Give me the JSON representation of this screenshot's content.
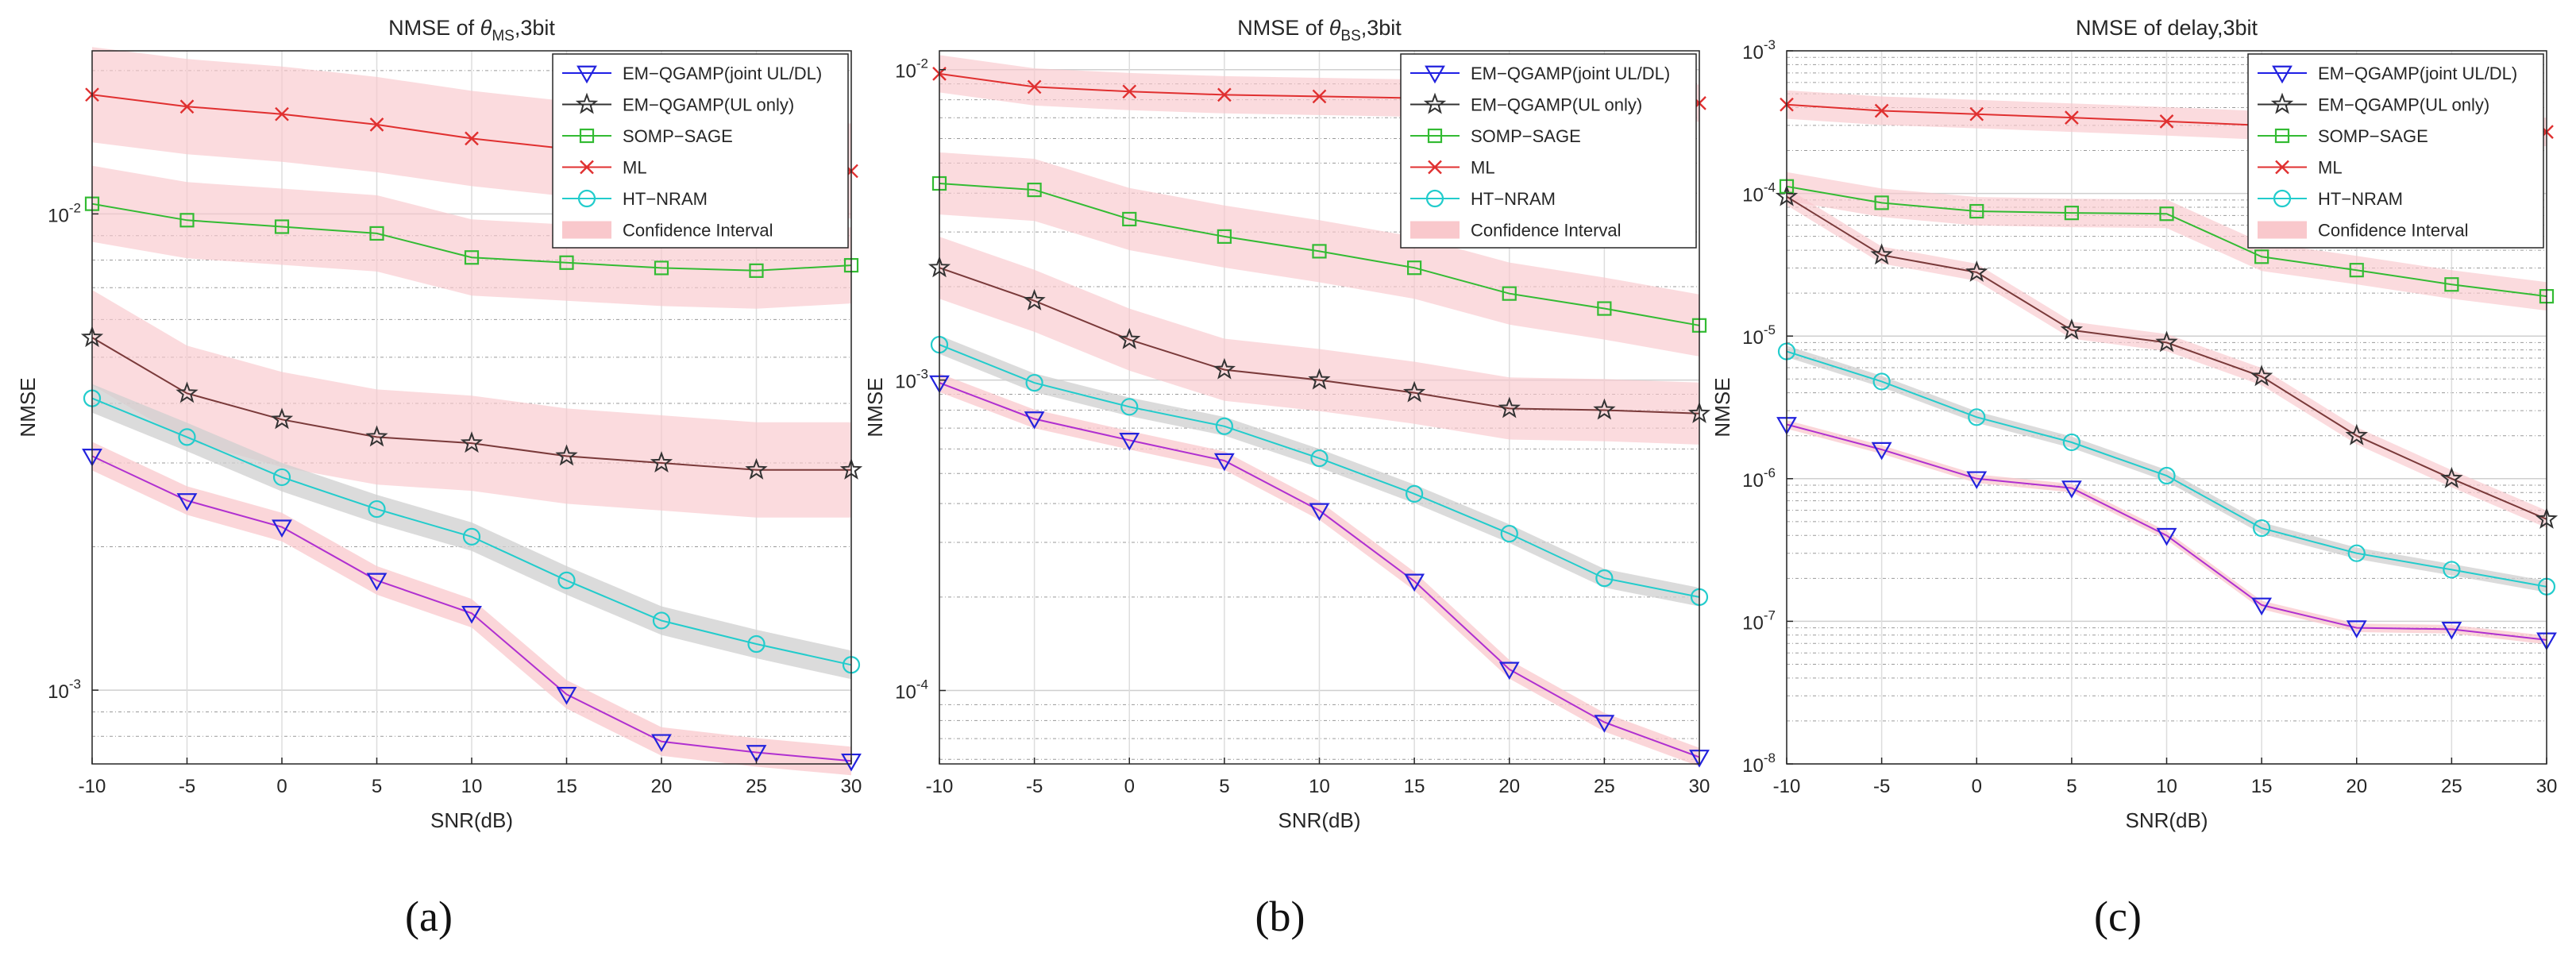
{
  "figure": {
    "panels": [
      "(a)",
      "(b)",
      "(c)"
    ]
  },
  "colors": {
    "em_joint": "#1f1fe6",
    "em_ul": "#333333",
    "somp": "#33bb33",
    "ml": "#e03030",
    "ht": "#22cccc",
    "ci": "#f9c8cc",
    "marker_joint": "#2222dd",
    "marker_ul": "#333333"
  },
  "chart_data": [
    {
      "type": "line",
      "scale": "log",
      "panel_label": "(a)",
      "title": "NMSE of θMS,3bit",
      "title_parts": {
        "pre": "NMSE of ",
        "theta": "θ",
        "sub": "MS",
        "post": ",3bit"
      },
      "xlabel": "SNR(dB)",
      "ylabel": "NMSE",
      "x": [
        -10,
        -5,
        0,
        5,
        10,
        15,
        20,
        25,
        30
      ],
      "xticks": [
        "-10",
        "-5",
        "0",
        "5",
        "10",
        "15",
        "20",
        "25",
        "30"
      ],
      "xlim": [
        -10,
        30
      ],
      "ylim": [
        0.0007,
        0.022
      ],
      "yticks": [
        {
          "value": 0.001,
          "base": "10",
          "exp": "-3"
        },
        {
          "value": 0.01,
          "base": "10",
          "exp": "-2"
        }
      ],
      "legend": [
        "EM−QGAMP(joint UL/DL)",
        "EM−QGAMP(UL only)",
        "SOMP−SAGE",
        "ML",
        "HT−NRAM",
        "Confidence Interval"
      ],
      "series": [
        {
          "name": "EM−QGAMP(joint UL/DL)",
          "key": "em_joint",
          "marker": "triangle-down",
          "values": [
            0.0031,
            0.0025,
            0.0022,
            0.0017,
            0.00145,
            0.00098,
            0.00078,
            0.00074,
            0.00071
          ],
          "ci": 0.03
        },
        {
          "name": "EM−QGAMP(UL only)",
          "key": "em_ul",
          "marker": "star",
          "values": [
            0.0055,
            0.0042,
            0.0037,
            0.0034,
            0.0033,
            0.0031,
            0.003,
            0.0029,
            0.0029
          ],
          "ci": 0.1
        },
        {
          "name": "SOMP−SAGE",
          "key": "somp",
          "marker": "square",
          "values": [
            0.0105,
            0.0097,
            0.0094,
            0.0091,
            0.0081,
            0.0079,
            0.0077,
            0.0076,
            0.0078
          ],
          "ci": 0.08
        },
        {
          "name": "ML",
          "key": "ml",
          "marker": "x",
          "values": [
            0.0178,
            0.0168,
            0.0162,
            0.0154,
            0.0144,
            0.0137,
            0.0132,
            0.0127,
            0.0123
          ],
          "ci": 0.1
        },
        {
          "name": "HT−NRAM",
          "key": "ht",
          "marker": "circle",
          "values": [
            0.0041,
            0.0034,
            0.0028,
            0.0024,
            0.0021,
            0.0017,
            0.0014,
            0.00125,
            0.00113
          ],
          "ci": 0.03
        }
      ]
    },
    {
      "type": "line",
      "scale": "log",
      "panel_label": "(b)",
      "title": "NMSE of θBS,3bit",
      "title_parts": {
        "pre": "NMSE of ",
        "theta": "θ",
        "sub": "BS",
        "post": ",3bit"
      },
      "xlabel": "SNR(dB)",
      "ylabel": "NMSE",
      "x": [
        -10,
        -5,
        0,
        5,
        10,
        15,
        20,
        25,
        30
      ],
      "xticks": [
        "-10",
        "-5",
        "0",
        "5",
        "10",
        "15",
        "20",
        "25",
        "30"
      ],
      "xlim": [
        -10,
        30
      ],
      "ylim": [
        5.8e-05,
        0.0115
      ],
      "yticks": [
        {
          "value": 0.0001,
          "base": "10",
          "exp": "-4"
        },
        {
          "value": 0.001,
          "base": "10",
          "exp": "-3"
        },
        {
          "value": 0.01,
          "base": "10",
          "exp": "-2"
        }
      ],
      "legend": [
        "EM−QGAMP(joint UL/DL)",
        "EM−QGAMP(UL only)",
        "SOMP−SAGE",
        "ML",
        "HT−NRAM",
        "Confidence Interval"
      ],
      "series": [
        {
          "name": "EM−QGAMP(joint UL/DL)",
          "key": "em_joint",
          "marker": "triangle-down",
          "values": [
            0.00098,
            0.00075,
            0.00064,
            0.00055,
            0.00038,
            0.000225,
            0.000117,
            7.9e-05,
            6.1e-05
          ],
          "ci": 0.03
        },
        {
          "name": "EM−QGAMP(UL only)",
          "key": "em_ul",
          "marker": "star",
          "values": [
            0.0023,
            0.0018,
            0.00135,
            0.00108,
            0.001,
            0.00091,
            0.00081,
            0.0008,
            0.00078
          ],
          "ci": 0.1
        },
        {
          "name": "SOMP−SAGE",
          "key": "somp",
          "marker": "square",
          "values": [
            0.0043,
            0.0041,
            0.0033,
            0.0029,
            0.0026,
            0.0023,
            0.0019,
            0.0017,
            0.0015
          ],
          "ci": 0.1
        },
        {
          "name": "ML",
          "key": "ml",
          "marker": "x",
          "values": [
            0.0097,
            0.0088,
            0.0085,
            0.0083,
            0.0082,
            0.0081,
            0.008,
            0.0079,
            0.0078
          ],
          "ci": 0.06
        },
        {
          "name": "HT−NRAM",
          "key": "ht",
          "marker": "circle",
          "values": [
            0.0013,
            0.00098,
            0.00082,
            0.00071,
            0.00056,
            0.00043,
            0.00032,
            0.00023,
            0.0002
          ],
          "ci": 0.03
        }
      ]
    },
    {
      "type": "line",
      "scale": "log",
      "panel_label": "(c)",
      "title": "NMSE of delay,3bit",
      "title_parts": {
        "pre": "NMSE of delay,3bit",
        "theta": "",
        "sub": "",
        "post": ""
      },
      "xlabel": "SNR(dB)",
      "ylabel": "NMSE",
      "x": [
        -10,
        -5,
        0,
        5,
        10,
        15,
        20,
        25,
        30
      ],
      "xticks": [
        "-10",
        "-5",
        "0",
        "5",
        "10",
        "15",
        "20",
        "25",
        "30"
      ],
      "xlim": [
        -10,
        30
      ],
      "ylim": [
        1e-08,
        0.001
      ],
      "yticks": [
        {
          "value": 1e-08,
          "base": "10",
          "exp": "-8"
        },
        {
          "value": 1e-07,
          "base": "10",
          "exp": "-7"
        },
        {
          "value": 1e-06,
          "base": "10",
          "exp": "-6"
        },
        {
          "value": 1e-05,
          "base": "10",
          "exp": "-5"
        },
        {
          "value": 0.0001,
          "base": "10",
          "exp": "-4"
        },
        {
          "value": 0.001,
          "base": "10",
          "exp": "-3"
        }
      ],
      "legend": [
        "EM−QGAMP(joint UL/DL)",
        "EM−QGAMP(UL only)",
        "SOMP−SAGE",
        "ML",
        "HT−NRAM",
        "Confidence Interval"
      ],
      "series": [
        {
          "name": "EM−QGAMP(joint UL/DL)",
          "key": "em_joint",
          "marker": "triangle-down",
          "values": [
            2.4e-06,
            1.6e-06,
            1e-06,
            8.6e-07,
            4e-07,
            1.3e-07,
            9e-08,
            8.8e-08,
            7.4e-08
          ],
          "ci": 0.03
        },
        {
          "name": "EM−QGAMP(UL only)",
          "key": "em_ul",
          "marker": "star",
          "values": [
            9.5e-05,
            3.7e-05,
            2.8e-05,
            1.1e-05,
            9e-06,
            5.2e-06,
            2e-06,
            1e-06,
            5.2e-07
          ],
          "ci": 0.06
        },
        {
          "name": "SOMP−SAGE",
          "key": "somp",
          "marker": "square",
          "values": [
            0.000112,
            8.6e-05,
            7.5e-05,
            7.3e-05,
            7.2e-05,
            3.6e-05,
            2.9e-05,
            2.3e-05,
            1.9e-05
          ],
          "ci": 0.1
        },
        {
          "name": "ML",
          "key": "ml",
          "marker": "x",
          "values": [
            0.00042,
            0.00038,
            0.00036,
            0.00034,
            0.00032,
            0.0003,
            0.00029,
            0.00028,
            0.00027
          ],
          "ci": 0.1
        },
        {
          "name": "HT−NRAM",
          "key": "ht",
          "marker": "circle",
          "values": [
            7.8e-06,
            4.8e-06,
            2.7e-06,
            1.8e-06,
            1.05e-06,
            4.5e-07,
            3e-07,
            2.3e-07,
            1.75e-07
          ],
          "ci": 0.04
        }
      ]
    }
  ]
}
